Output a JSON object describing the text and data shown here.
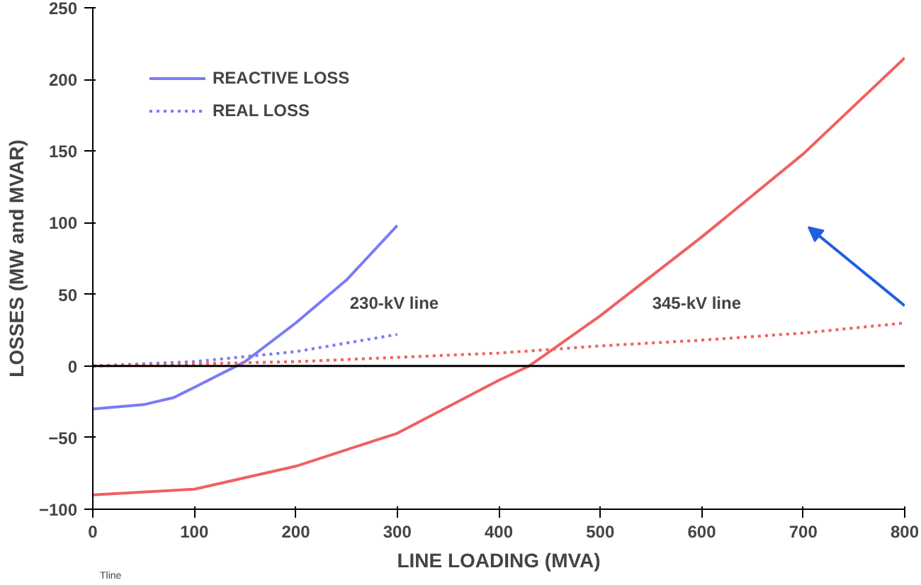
{
  "chart_data": {
    "type": "line",
    "xlabel": "LINE LOADING (MVA)",
    "ylabel": "LOSSES (MW and MVAR)",
    "xlim": [
      0,
      800
    ],
    "ylim": [
      -100,
      250
    ],
    "xticks": [
      0,
      100,
      200,
      300,
      400,
      500,
      600,
      700,
      800
    ],
    "yticks": [
      -100,
      -50,
      0,
      50,
      100,
      150,
      200,
      250
    ],
    "grid": false,
    "legend": "top left",
    "marker": "none",
    "series": [
      {
        "name": "REACTIVE LOSS",
        "color": "#7b7bf7",
        "line_style": "solid",
        "x": [
          0,
          50,
          80,
          100,
          150,
          200,
          250,
          300
        ],
        "values": [
          -30,
          -27,
          -22,
          -15,
          3,
          30,
          60,
          98
        ]
      },
      {
        "name": "REAL LOSS",
        "color": "#7b7bf7",
        "line_style": "dotted",
        "x": [
          0,
          100,
          200,
          300
        ],
        "values": [
          0,
          3,
          10,
          22
        ]
      },
      {
        "color": "#f06060",
        "line_style": "solid",
        "x": [
          0,
          100,
          200,
          300,
          400,
          430,
          500,
          600,
          700,
          800
        ],
        "values": [
          -90,
          -86,
          -70,
          -47,
          -10,
          0,
          35,
          90,
          148,
          215
        ]
      },
      {
        "color": "#f06060",
        "line_style": "dotted",
        "x": [
          0,
          200,
          400,
          500,
          600,
          700,
          800
        ],
        "values": [
          0,
          3,
          9,
          14,
          18,
          23,
          30
        ]
      }
    ],
    "ref_lines": [
      {
        "axis": "y",
        "value": 0,
        "color": "#000000",
        "line_style": "solid"
      }
    ],
    "annotations": [
      "230-kV line",
      "345-kV line",
      "Tline"
    ]
  }
}
